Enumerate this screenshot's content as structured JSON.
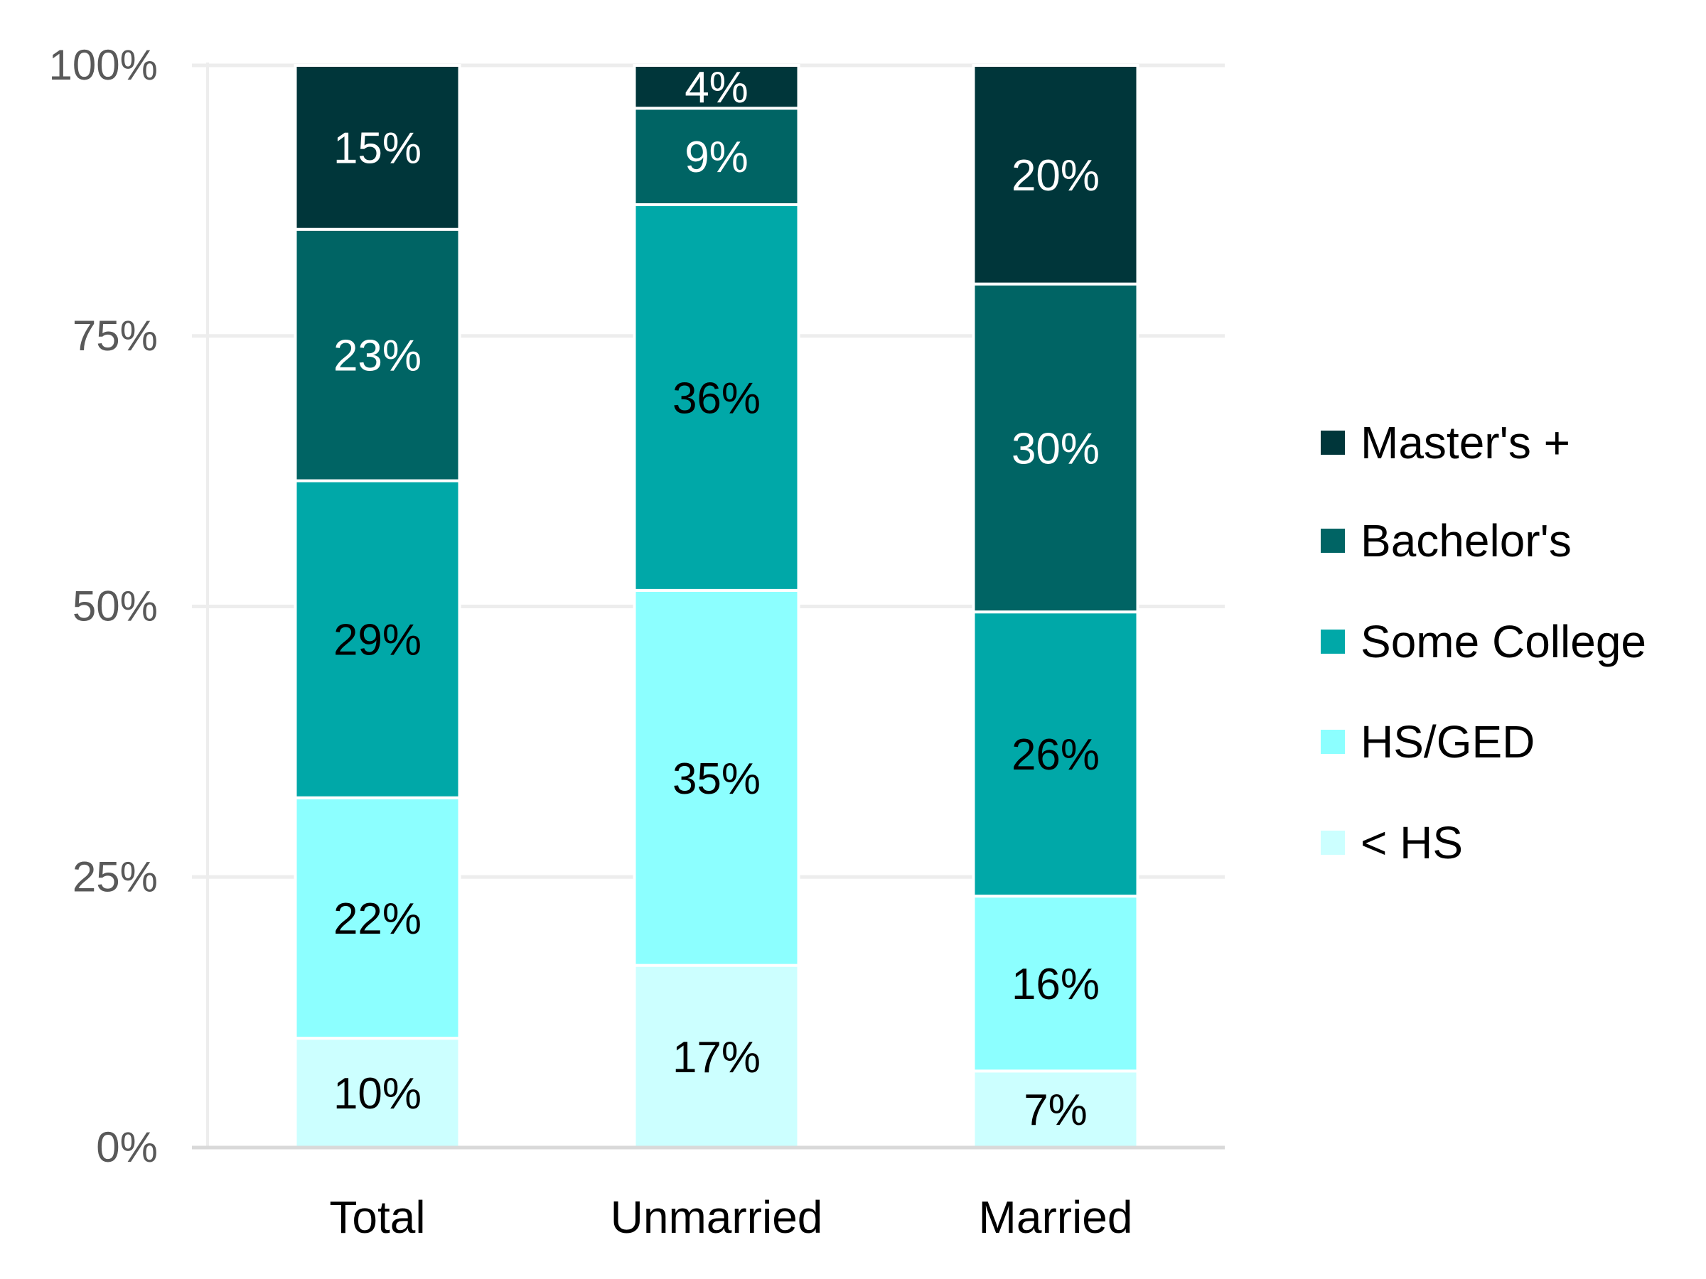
{
  "chart_data": {
    "type": "bar",
    "stacked": true,
    "title": "",
    "xlabel": "",
    "ylabel": "",
    "ylim": [
      0,
      100
    ],
    "yticks": [
      "0%",
      "25%",
      "50%",
      "75%",
      "100%"
    ],
    "ytick_values": [
      0,
      25,
      50,
      75,
      100
    ],
    "grid": true,
    "legend_position": "right",
    "categories": [
      "Total",
      "Unmarried",
      "Married"
    ],
    "series": [
      {
        "name": "< HS",
        "color": "#ccffff",
        "label_color": "#000000",
        "values": [
          10,
          17,
          7
        ],
        "labels": [
          "10%",
          "17%",
          "7%"
        ]
      },
      {
        "name": "HS/GED",
        "color": "#8cffff",
        "label_color": "#000000",
        "values": [
          22,
          35,
          16
        ],
        "labels": [
          "22%",
          "35%",
          "16%"
        ]
      },
      {
        "name": "Some College",
        "color": "#00a8a8",
        "label_color": "#000000",
        "values": [
          29,
          36,
          26
        ],
        "labels": [
          "29%",
          "36%",
          "26%"
        ]
      },
      {
        "name": "Bachelor's",
        "color": "#006464",
        "label_color": "#ffffff",
        "values": [
          23,
          9,
          30
        ],
        "labels": [
          "23%",
          "9%",
          "30%"
        ]
      },
      {
        "name": "Master's +",
        "color": "#00363a",
        "label_color": "#ffffff",
        "values": [
          15,
          4,
          20
        ],
        "labels": [
          "15%",
          "4%",
          "20%"
        ]
      }
    ]
  }
}
